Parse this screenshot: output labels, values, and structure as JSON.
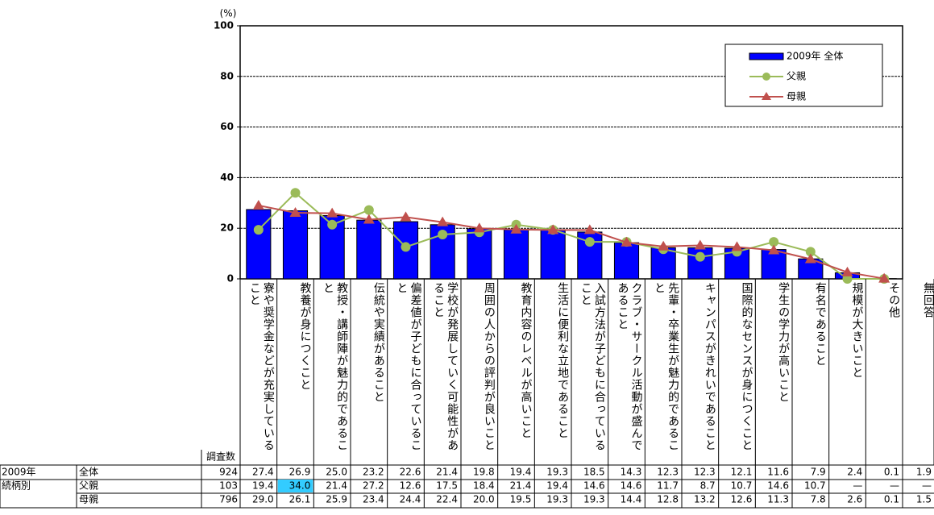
{
  "chart_data": {
    "type": "bar_line",
    "y_label": "(%)",
    "ylim": [
      0,
      100
    ],
    "yticks": [
      0,
      20,
      40,
      60,
      80,
      100
    ],
    "grid": true,
    "legend": "upper-right",
    "categories": [
      "寮や奨学金などが充実していること",
      "教養が身につくこと",
      "教授・講師陣が魅力的であること",
      "伝統や実績があること",
      "偏差値が子どもに合っていること",
      "学校が発展していく可能性があること",
      "周囲の人からの評判が良いこと",
      "教育内容のレベルが高いこと",
      "生活に便利な立地であること",
      "入試方法が子どもに合っていること",
      "クラブ・サークル活動が盛んであること",
      "先輩・卒業生が魅力的であること",
      "キャンパスがきれいであること",
      "国際的なセンスが身につくこと",
      "学生の学力が高いこと",
      "有名であること",
      "規模が大きいこと",
      "その他"
    ],
    "n_label": "調査数",
    "no_answer": {
      "label": "無回答",
      "values": [
        1.9,
        0,
        1.5
      ],
      "value_labels": [
        "1.9",
        "—",
        "1.5"
      ]
    },
    "highlight": {
      "series": 1,
      "index": 1,
      "color": "#33ccff"
    },
    "series": [
      {
        "name": "全体",
        "group": "2009年",
        "legend": "2009年 全体",
        "kind": "bar",
        "color": "#0000ff",
        "n": 924,
        "values": [
          27.4,
          26.9,
          25.0,
          23.2,
          22.6,
          21.4,
          19.8,
          19.4,
          19.3,
          18.5,
          14.3,
          12.3,
          12.3,
          12.1,
          11.6,
          7.9,
          2.4,
          0.1
        ],
        "value_labels": [
          "27.4",
          "26.9",
          "25.0",
          "23.2",
          "22.6",
          "21.4",
          "19.8",
          "19.4",
          "19.3",
          "18.5",
          "14.3",
          "12.3",
          "12.3",
          "12.1",
          "11.6",
          "7.9",
          "2.4",
          "0.1"
        ]
      },
      {
        "name": "父親",
        "group": "続柄別",
        "kind": "line",
        "marker": "circle",
        "color": "#9bbb59",
        "n": 103,
        "values": [
          19.4,
          34.0,
          21.4,
          27.2,
          12.6,
          17.5,
          18.4,
          21.4,
          19.4,
          14.6,
          14.6,
          11.7,
          8.7,
          10.7,
          14.6,
          10.7,
          0,
          0
        ],
        "value_labels": [
          "19.4",
          "34.0",
          "21.4",
          "27.2",
          "12.6",
          "17.5",
          "18.4",
          "21.4",
          "19.4",
          "14.6",
          "14.6",
          "11.7",
          "8.7",
          "10.7",
          "14.6",
          "10.7",
          "—",
          "—"
        ]
      },
      {
        "name": "母親",
        "kind": "line",
        "marker": "triangle",
        "color": "#c0504d",
        "n": 796,
        "values": [
          29.0,
          26.1,
          25.9,
          23.4,
          24.4,
          22.4,
          20.0,
          19.5,
          19.3,
          19.3,
          14.4,
          12.8,
          13.2,
          12.6,
          11.3,
          7.8,
          2.6,
          0.1
        ],
        "value_labels": [
          "29.0",
          "26.1",
          "25.9",
          "23.4",
          "24.4",
          "22.4",
          "20.0",
          "19.5",
          "19.3",
          "19.3",
          "14.4",
          "12.8",
          "13.2",
          "12.6",
          "11.3",
          "7.8",
          "2.6",
          "0.1"
        ]
      }
    ]
  }
}
